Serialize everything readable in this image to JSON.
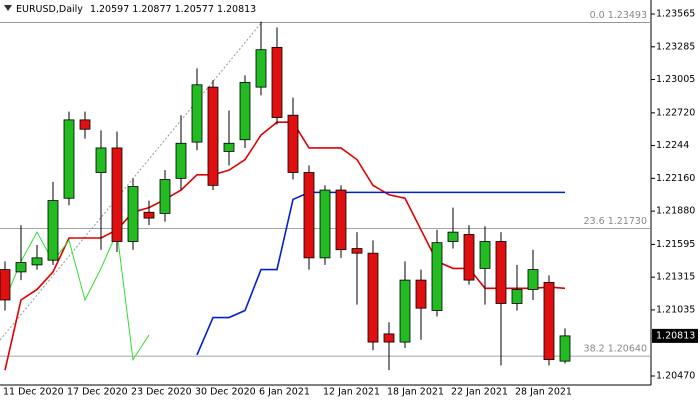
{
  "chart_data": {
    "type": "candlestick",
    "title": "EURUSD,Daily",
    "categories": [
      "11 Dec 2020",
      null,
      null,
      null,
      "17 Dec 2020",
      null,
      null,
      null,
      "23 Dec 2020",
      null,
      null,
      null,
      "30 Dec 2020",
      null,
      null,
      null,
      "6 Jan 2021",
      null,
      null,
      null,
      "12 Jan 2021",
      null,
      null,
      null,
      "18 Jan 2021",
      null,
      null,
      null,
      "22 Jan 2021",
      null,
      null,
      null,
      "28 Jan 2021",
      null,
      null,
      null
    ],
    "open": [
      1.2138,
      1.2136,
      1.2142,
      1.2146,
      1.2199,
      1.2266,
      1.2221,
      1.2242,
      1.2162,
      1.2187,
      1.2186,
      1.2216,
      1.2247,
      1.2294,
      1.2239,
      1.2249,
      1.2294,
      1.2328,
      1.227,
      1.2221,
      1.2148,
      1.2206,
      1.2156,
      1.2152,
      1.2083,
      1.2076,
      1.2129,
      1.2103,
      1.2162,
      1.2168,
      1.2139,
      1.2162,
      1.2109,
      1.2121,
      1.2127,
      1.20597
    ],
    "high": [
      1.2145,
      1.2176,
      1.2159,
      1.2213,
      1.2273,
      1.2273,
      1.2257,
      1.2256,
      1.2216,
      1.2197,
      1.2223,
      1.227,
      1.231,
      1.23,
      1.2274,
      1.2304,
      1.235,
      1.2345,
      1.2285,
      1.2227,
      1.221,
      1.221,
      1.217,
      1.2163,
      1.2093,
      1.2145,
      1.2138,
      1.2172,
      1.2191,
      1.2176,
      1.2175,
      1.217,
      1.2142,
      1.2155,
      1.2133,
      1.20877
    ],
    "low": [
      1.2103,
      1.2129,
      1.2138,
      1.2142,
      1.2193,
      1.225,
      1.2155,
      1.2153,
      1.2155,
      1.2176,
      1.2179,
      1.2206,
      1.224,
      1.2206,
      1.2227,
      1.2242,
      1.2287,
      1.2262,
      1.2215,
      1.2138,
      1.2142,
      1.2148,
      1.2108,
      1.2069,
      1.2052,
      1.2071,
      1.2078,
      1.2098,
      1.2156,
      1.2125,
      1.2108,
      1.2056,
      1.2103,
      1.2112,
      1.2056,
      1.20577
    ],
    "close": [
      1.2112,
      1.2144,
      1.2148,
      1.2197,
      1.2266,
      1.2258,
      1.2242,
      1.2162,
      1.2209,
      1.2182,
      1.2215,
      1.2246,
      1.2296,
      1.221,
      1.2246,
      1.2298,
      1.2326,
      1.2268,
      1.2221,
      1.2148,
      1.2206,
      1.2155,
      1.2152,
      1.2076,
      1.2076,
      1.2129,
      1.2105,
      1.2161,
      1.217,
      1.2129,
      1.2162,
      1.2109,
      1.2121,
      1.2138,
      1.2061,
      1.20813
    ],
    "up_color": "#22bb22",
    "down_color": "#e01010",
    "indicators": [
      {
        "color": "#e00000",
        "values": [
          1.2052,
          1.2112,
          1.2121,
          1.2136,
          1.2165,
          1.2165,
          1.2165,
          1.2172,
          1.2187,
          1.2191,
          1.2198,
          1.2206,
          1.2219,
          1.2219,
          1.2223,
          1.2232,
          1.2253,
          1.2264,
          1.2264,
          1.2242,
          1.2242,
          1.2242,
          1.2232,
          1.221,
          1.2202,
          1.2199,
          1.2172,
          1.2145,
          1.2139,
          1.2139,
          1.2122,
          1.2122,
          1.2122,
          1.2122,
          1.2123,
          1.2122
        ]
      },
      {
        "color": "#0022cc",
        "values": [
          null,
          null,
          null,
          null,
          null,
          null,
          null,
          null,
          null,
          null,
          null,
          null,
          1.2065,
          1.2097,
          1.2097,
          1.2103,
          1.2138,
          1.2138,
          1.2198,
          1.2204,
          1.2204,
          1.2204,
          1.2204,
          1.2204,
          1.2204,
          1.2204,
          1.2204,
          1.2204,
          1.2204,
          1.2204,
          1.2204,
          1.2204,
          1.2204,
          1.2204,
          1.2204,
          1.2204
        ]
      },
      {
        "color": "#33dd33",
        "values": [
          1.2112,
          1.2145,
          1.217,
          1.2145,
          1.2163,
          1.2112,
          1.2139,
          1.217,
          1.2061,
          1.2082,
          null,
          null,
          null,
          null,
          null,
          null,
          null,
          null,
          null,
          null,
          null,
          null,
          null,
          null,
          null,
          null,
          null,
          null,
          null,
          null,
          null,
          null,
          null,
          null,
          null,
          null
        ]
      }
    ],
    "fib_levels": [
      {
        "value": 1.23493,
        "label": "0.0 1.23493"
      },
      {
        "value": 1.2173,
        "label": "23.6 1.21730"
      },
      {
        "value": 1.2064,
        "label": "38.2 1.20640"
      }
    ],
    "ylim": [
      1.20393,
      1.23685
    ],
    "yticks": [
      1.23565,
      1.23285,
      1.23005,
      {
        "value": 1.2272,
        "label": "1.22720"
      },
      1.2244,
      {
        "value": 1.2216,
        "label": "1.22160"
      },
      {
        "value": 1.2188,
        "label": "1.21880"
      },
      1.21595,
      1.21315,
      1.21035,
      {
        "value": 1.2047,
        "label": "1.20470"
      }
    ]
  }
}
